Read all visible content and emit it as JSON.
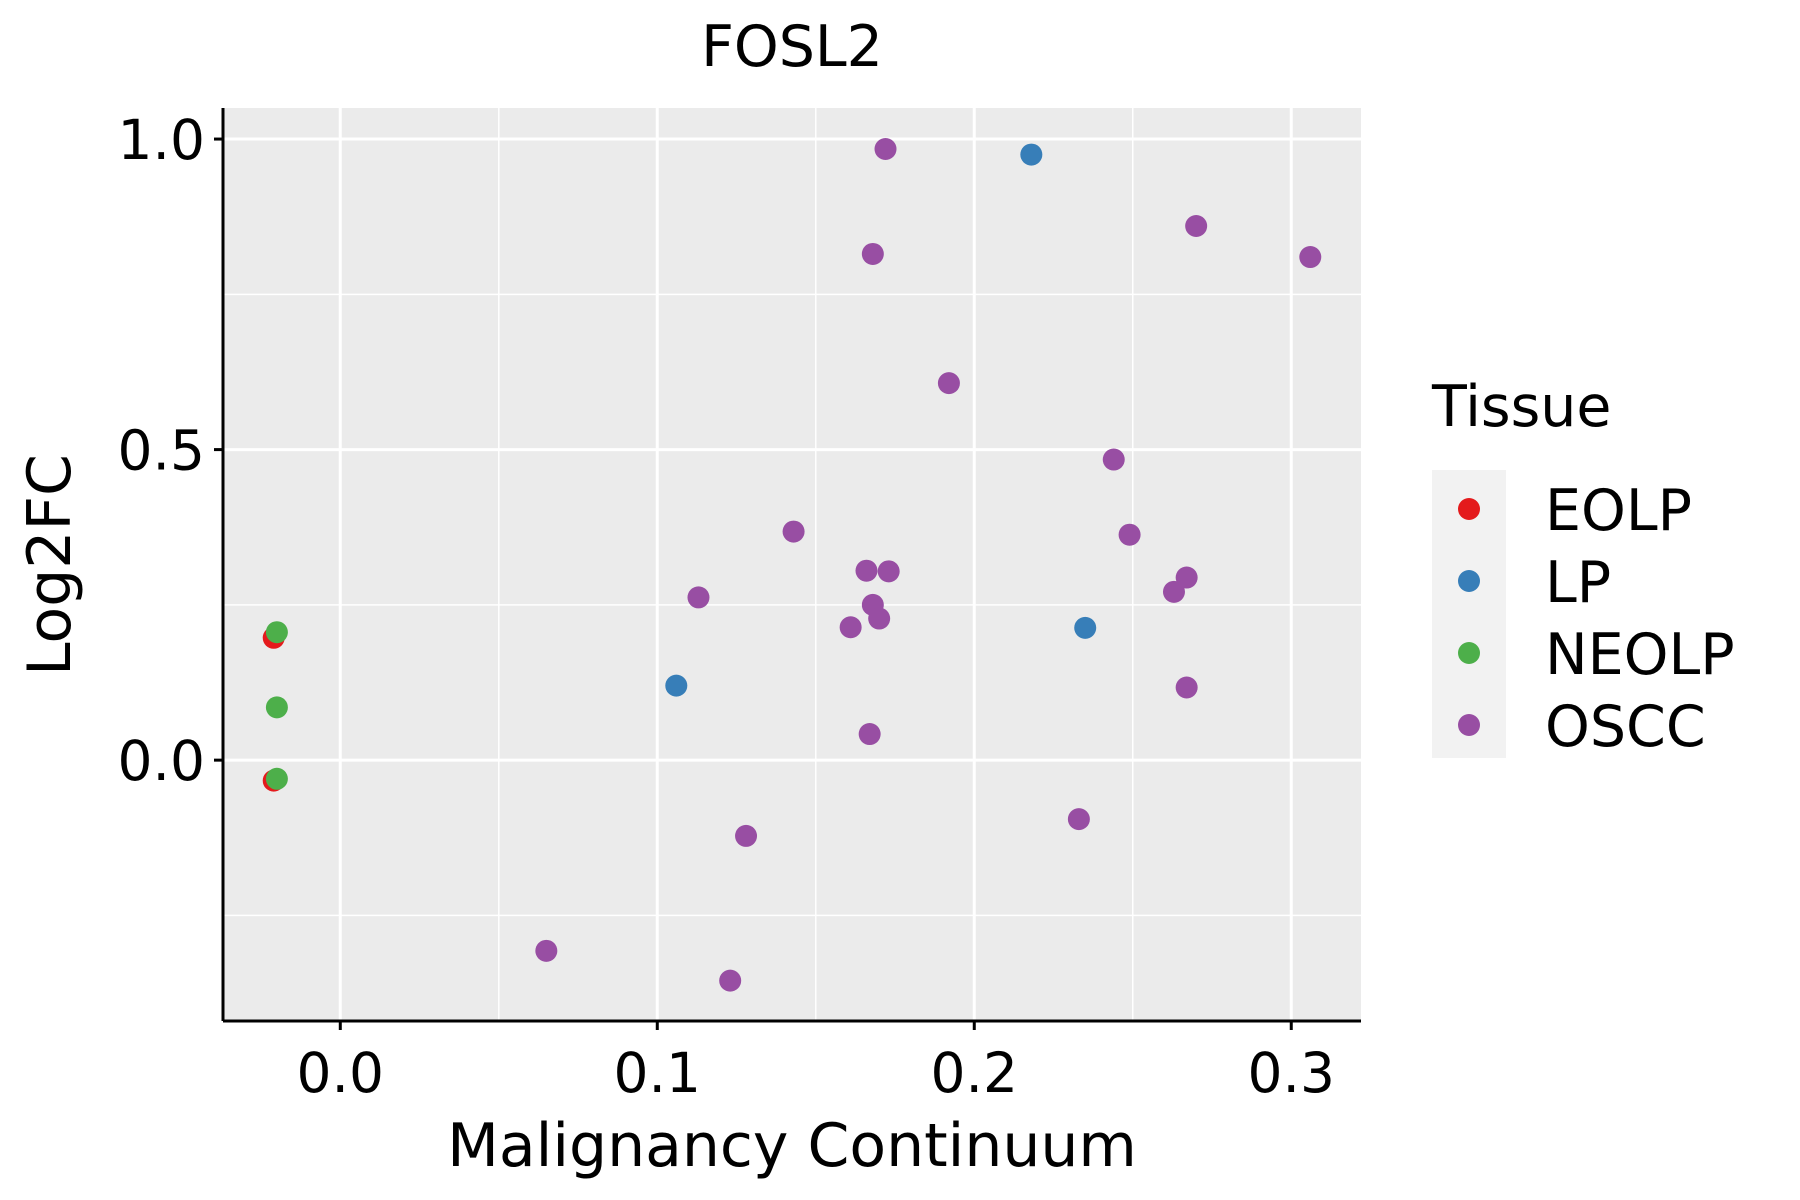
{
  "chart_data": {
    "type": "scatter",
    "title": "FOSL2",
    "xlabel": "Malignancy Continuum",
    "ylabel": "Log2FC",
    "xlim": [
      -0.037,
      0.322
    ],
    "ylim": [
      -0.42,
      1.05
    ],
    "x_ticks": [
      0.0,
      0.1,
      0.2,
      0.3
    ],
    "x_tick_labels": [
      "0.0",
      "0.1",
      "0.2",
      "0.3"
    ],
    "y_ticks": [
      0.0,
      0.5,
      1.0
    ],
    "y_tick_labels": [
      "0.0",
      "0.5",
      "1.0"
    ],
    "grid": true,
    "background": "#EBEBEB",
    "legend": {
      "title": "Tissue",
      "position": "right",
      "entries": [
        "EOLP",
        "LP",
        "NEOLP",
        "OSCC"
      ]
    },
    "series": [
      {
        "name": "EOLP",
        "color": "#E41A1C",
        "points": [
          [
            -0.021,
            0.197
          ],
          [
            -0.021,
            -0.033
          ]
        ]
      },
      {
        "name": "LP",
        "color": "#377EB8",
        "points": [
          [
            0.106,
            0.12
          ],
          [
            0.218,
            0.975
          ],
          [
            0.235,
            0.213
          ]
        ]
      },
      {
        "name": "NEOLP",
        "color": "#4DAF4A",
        "points": [
          [
            -0.02,
            0.206
          ],
          [
            -0.02,
            0.085
          ],
          [
            -0.02,
            -0.03
          ]
        ]
      },
      {
        "name": "OSCC",
        "color": "#984EA3",
        "points": [
          [
            0.172,
            0.984
          ],
          [
            0.168,
            0.815
          ],
          [
            0.27,
            0.86
          ],
          [
            0.306,
            0.81
          ],
          [
            0.192,
            0.607
          ],
          [
            0.244,
            0.484
          ],
          [
            0.249,
            0.363
          ],
          [
            0.143,
            0.368
          ],
          [
            0.166,
            0.305
          ],
          [
            0.173,
            0.304
          ],
          [
            0.267,
            0.294
          ],
          [
            0.263,
            0.271
          ],
          [
            0.113,
            0.262
          ],
          [
            0.168,
            0.25
          ],
          [
            0.17,
            0.228
          ],
          [
            0.161,
            0.214
          ],
          [
            0.267,
            0.117
          ],
          [
            0.167,
            0.042
          ],
          [
            0.233,
            -0.095
          ],
          [
            0.128,
            -0.122
          ],
          [
            0.065,
            -0.307
          ],
          [
            0.123,
            -0.355
          ]
        ]
      }
    ]
  }
}
